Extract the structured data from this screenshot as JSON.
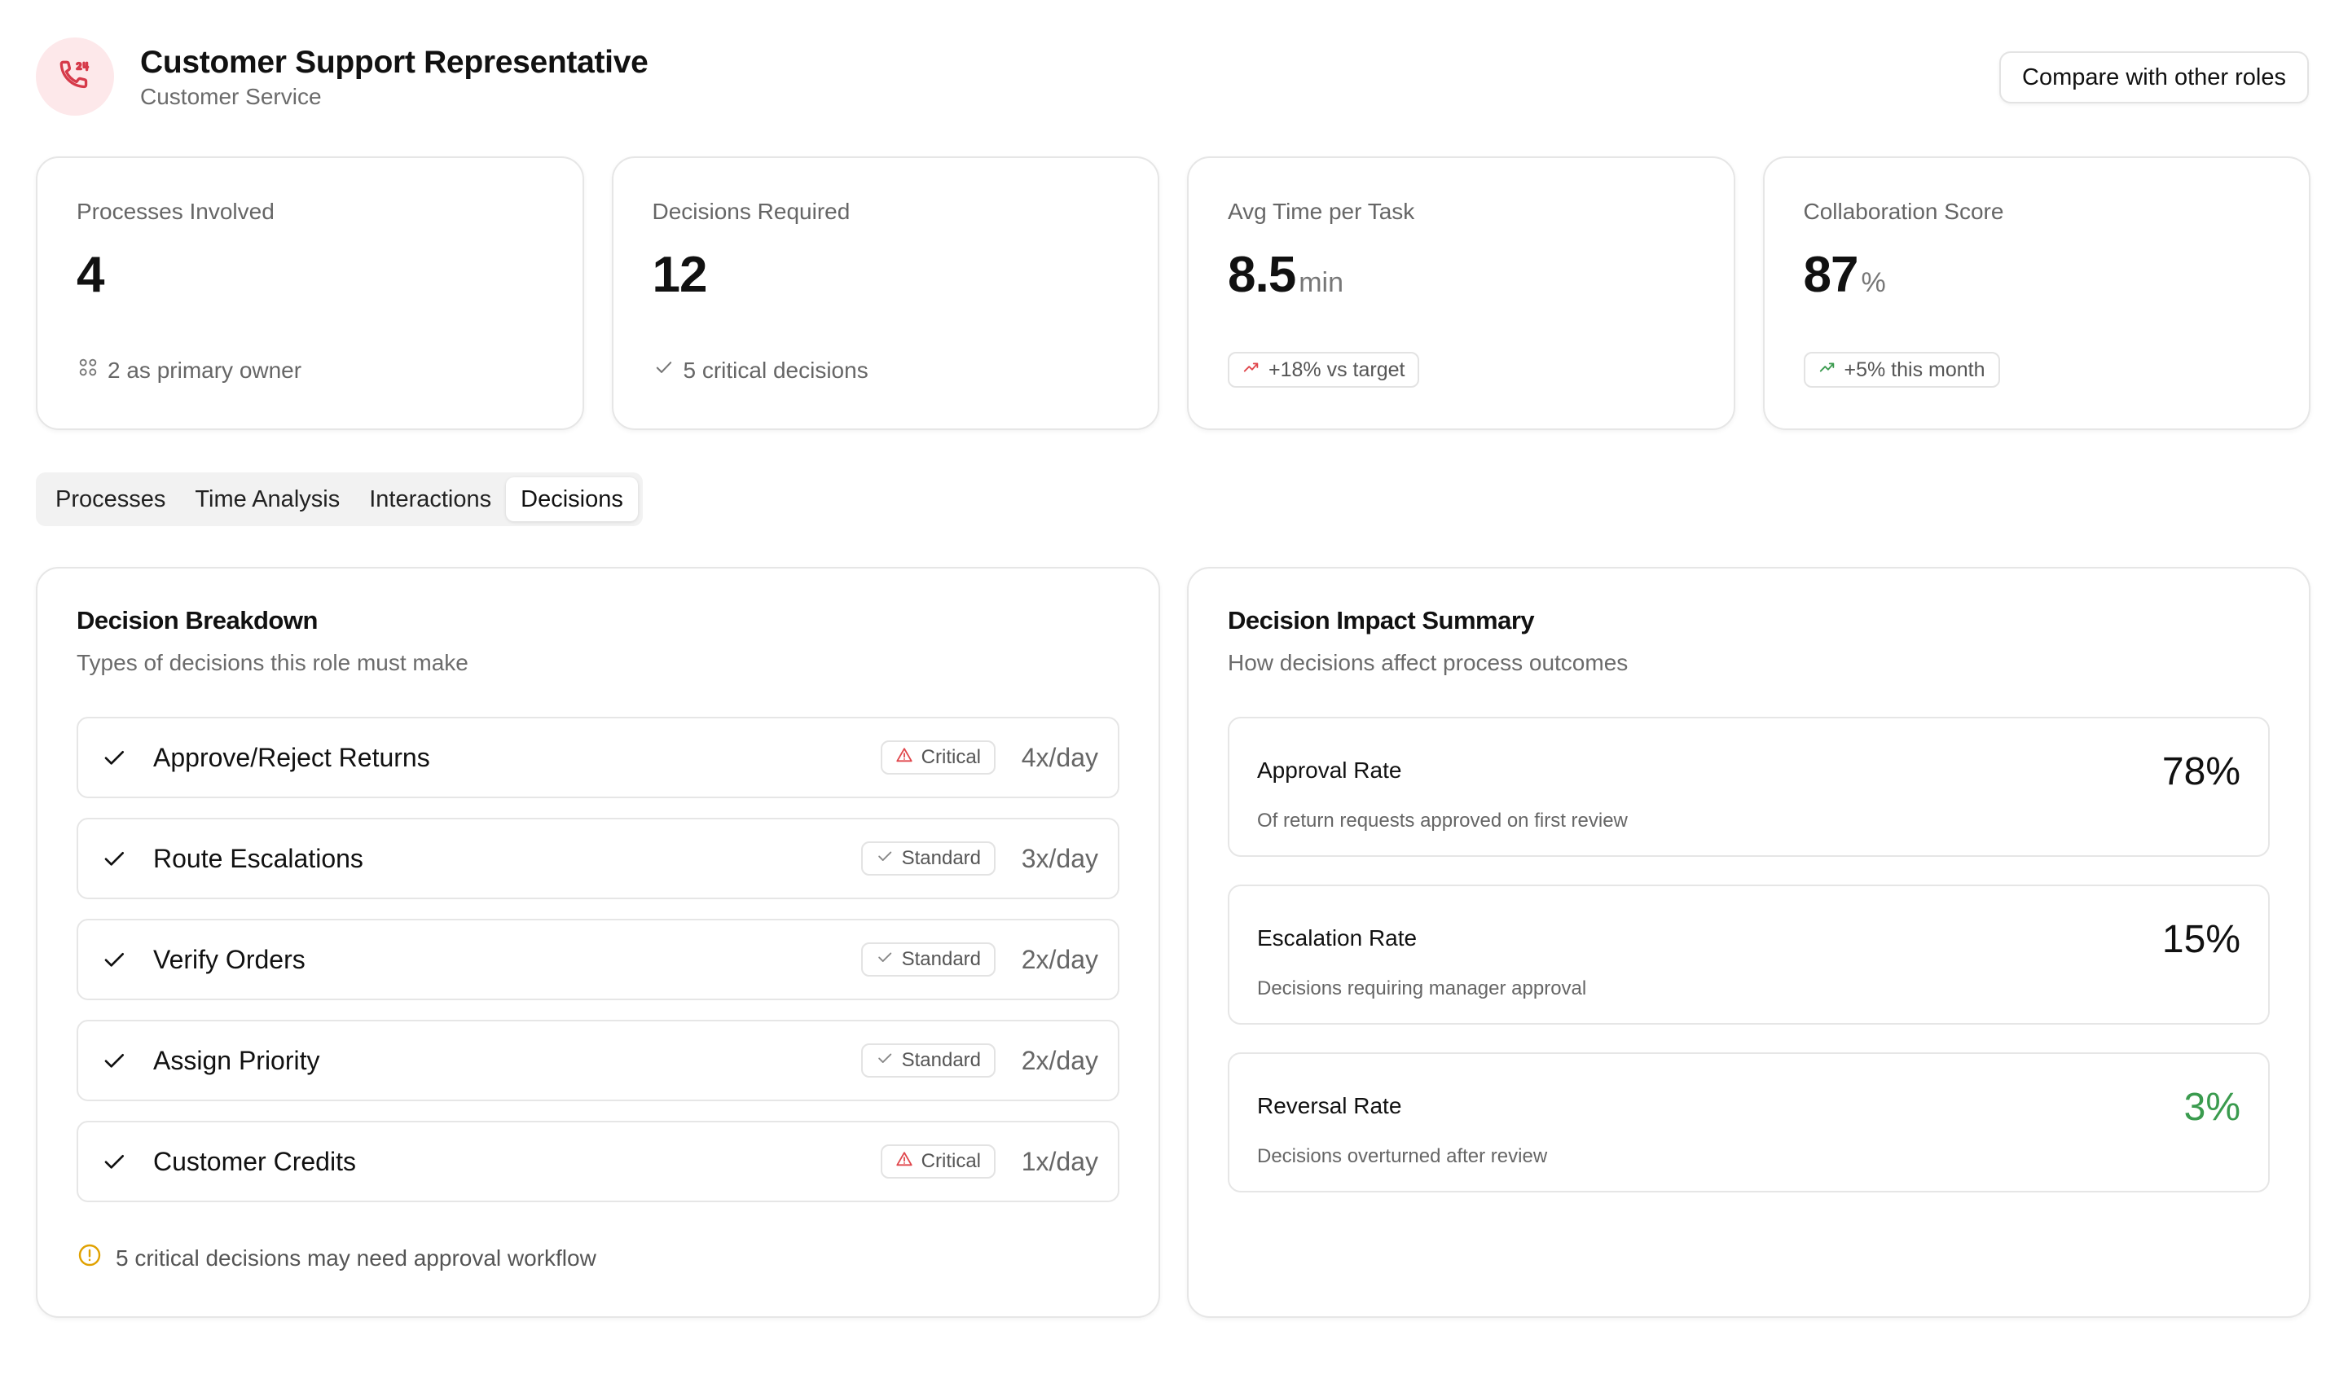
{
  "header": {
    "title": "Customer Support Representative",
    "subtitle": "Customer Service",
    "icon": "phone-24-icon",
    "compare_label": "Compare with other roles"
  },
  "stats": [
    {
      "label": "Processes Involved",
      "value": "4",
      "unit": "",
      "foot": "2 as primary owner",
      "foot_icon": "grid-icon"
    },
    {
      "label": "Decisions Required",
      "value": "12",
      "unit": "",
      "foot": "5 critical decisions",
      "foot_icon": "check-icon"
    },
    {
      "label": "Avg Time per Task",
      "value": "8.5",
      "unit": "min",
      "badge": "+18% vs target",
      "badge_icon": "trend-up-icon",
      "badge_color": "#e0474c"
    },
    {
      "label": "Collaboration Score",
      "value": "87",
      "unit": "%",
      "badge": "+5% this month",
      "badge_icon": "trend-up-icon",
      "badge_color": "#3a9b4e"
    }
  ],
  "tabs": [
    "Processes",
    "Time Analysis",
    "Interactions",
    "Decisions"
  ],
  "active_tab": "Decisions",
  "breakdown": {
    "title": "Decision Breakdown",
    "subtitle": "Types of decisions this role must make",
    "items": [
      {
        "name": "Approve/Reject Returns",
        "badge": "Critical",
        "freq": "4x/day"
      },
      {
        "name": "Route Escalations",
        "badge": "Standard",
        "freq": "3x/day"
      },
      {
        "name": "Verify Orders",
        "badge": "Standard",
        "freq": "2x/day"
      },
      {
        "name": "Assign Priority",
        "badge": "Standard",
        "freq": "2x/day"
      },
      {
        "name": "Customer Credits",
        "badge": "Critical",
        "freq": "1x/day"
      }
    ],
    "warning": "5 critical decisions may need approval workflow"
  },
  "impact": {
    "title": "Decision Impact Summary",
    "subtitle": "How decisions affect process outcomes",
    "items": [
      {
        "label": "Approval Rate",
        "desc": "Of return requests approved on first review",
        "value": "78%"
      },
      {
        "label": "Escalation Rate",
        "desc": "Decisions requiring manager approval",
        "value": "15%"
      },
      {
        "label": "Reversal Rate",
        "desc": "Decisions overturned after review",
        "value": "3%"
      }
    ]
  },
  "colors": {
    "critical": "#e0474c",
    "positive": "#3a9b4e",
    "warning": "#e0a100",
    "icon_bg": "#fde8ea"
  }
}
